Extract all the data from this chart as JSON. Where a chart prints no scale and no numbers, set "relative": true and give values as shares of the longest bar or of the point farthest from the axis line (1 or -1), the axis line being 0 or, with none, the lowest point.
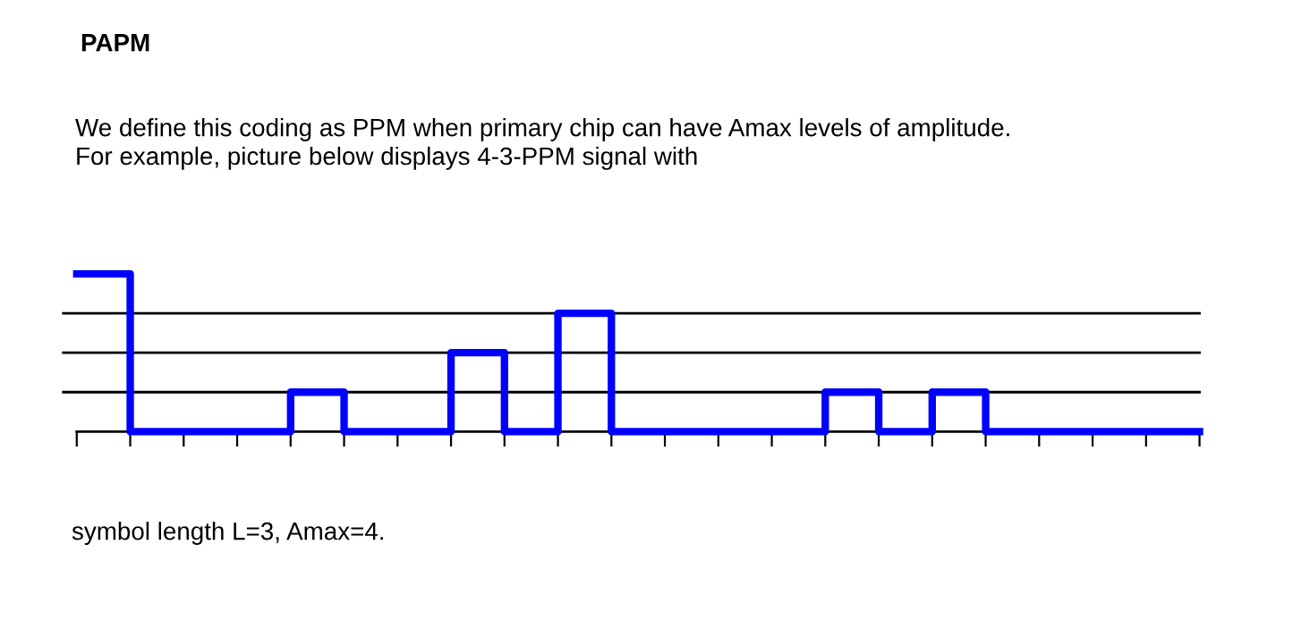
{
  "chart_data": {
    "type": "step",
    "title": "PAPM",
    "subtitle": "We define this coding as PPM when primary chip can have Amax levels of amplitude.\nFor example, picture below displays 4-3-PPM signal with",
    "annotations": [
      "symbol length L=3, Amax=4."
    ],
    "categories": [
      null,
      null,
      null,
      null,
      null,
      null,
      null,
      null,
      null,
      null,
      null,
      null,
      null,
      null,
      null,
      null,
      null,
      null,
      null,
      null,
      null,
      null
    ],
    "values": [
      1,
      0,
      0,
      0,
      0.25,
      0,
      0,
      0.5,
      0,
      0.75,
      0,
      0,
      0,
      0,
      0.25,
      0,
      0.25,
      0,
      0,
      0,
      0,
      0
    ],
    "color": "#0000ff",
    "relative": true,
    "legend": false,
    "ref_lines": [
      {
        "axis": "y",
        "value": 0.25,
        "label": null,
        "color": "#000000"
      },
      {
        "axis": "y",
        "value": 0.5,
        "label": null,
        "color": "#000000"
      },
      {
        "axis": "y",
        "value": 0.75,
        "label": null,
        "color": "#000000"
      }
    ]
  }
}
